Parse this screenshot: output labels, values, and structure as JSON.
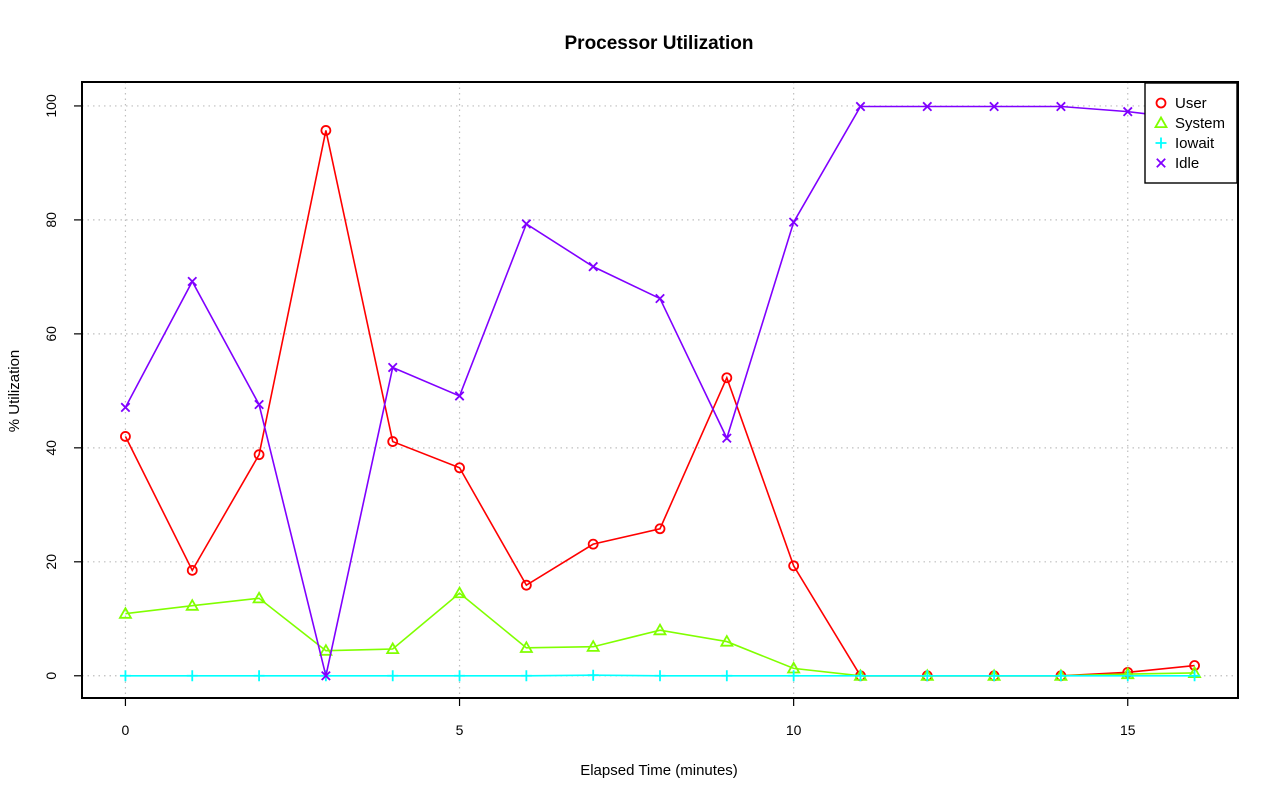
{
  "chart_data": {
    "type": "line",
    "title": "Processor Utilization",
    "xlabel": "Elapsed Time (minutes)",
    "ylabel": "% Utilization",
    "xlim": [
      -0.65,
      16.65
    ],
    "ylim": [
      -3.9,
      104.2
    ],
    "xticks": [
      0,
      5,
      10,
      15
    ],
    "yticks": [
      0,
      20,
      40,
      60,
      80,
      100
    ],
    "grid": true,
    "legend_position": "top-right",
    "x": [
      0,
      1,
      2,
      3,
      4,
      5,
      6,
      7,
      8,
      9,
      10,
      11,
      12,
      13,
      14,
      15,
      16
    ],
    "series": [
      {
        "name": "User",
        "color": "#ff0000",
        "marker": "circle",
        "values": [
          42,
          18.5,
          38.8,
          95.7,
          41.1,
          36.5,
          15.9,
          23.1,
          25.8,
          52.3,
          19.3,
          0,
          0,
          0,
          0,
          0.6,
          1.8
        ]
      },
      {
        "name": "System",
        "color": "#80ff00",
        "marker": "triangle",
        "values": [
          10.9,
          12.3,
          13.6,
          4.4,
          4.7,
          14.5,
          4.9,
          5.1,
          8.0,
          6.0,
          1.3,
          0,
          0,
          0,
          0,
          0.3,
          0.5
        ]
      },
      {
        "name": "Iowait",
        "color": "#00ffff",
        "marker": "plus",
        "values": [
          0,
          0,
          0,
          0,
          0,
          0,
          0,
          0.1,
          0,
          0,
          0,
          0,
          0,
          0,
          0,
          0,
          0
        ]
      },
      {
        "name": "Idle",
        "color": "#8000ff",
        "marker": "cross",
        "values": [
          47.1,
          69.2,
          47.6,
          0,
          54.1,
          49.1,
          79.3,
          71.8,
          66.2,
          41.7,
          79.6,
          99.9,
          99.9,
          99.9,
          99.9,
          99.0,
          97.6
        ]
      }
    ]
  }
}
